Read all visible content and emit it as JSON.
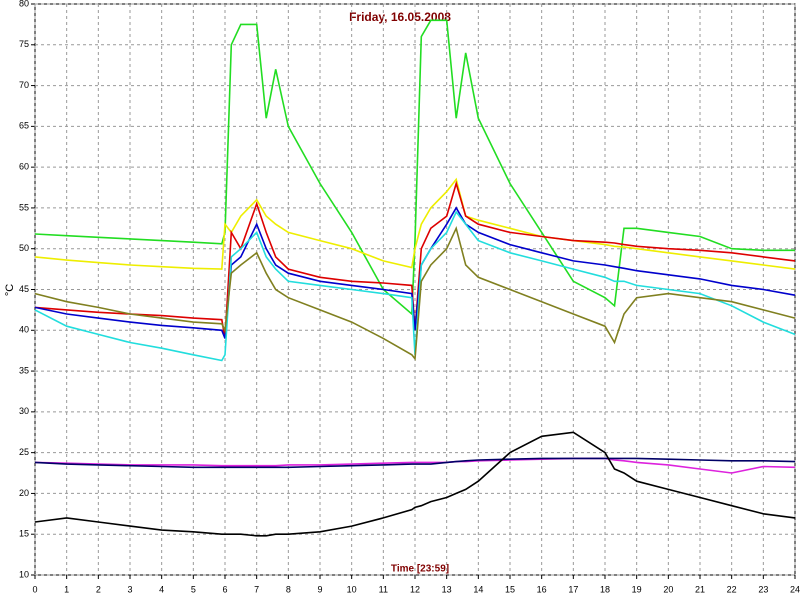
{
  "chart_data": {
    "type": "line",
    "title": "Friday, 16.05.2008",
    "x_label": "Time [23:59]",
    "y_label": "°C",
    "x": [
      0,
      1,
      2,
      3,
      4,
      5,
      5.9,
      6,
      6.2,
      6.5,
      7,
      7.3,
      7.6,
      8,
      9,
      10,
      11,
      11.9,
      12,
      12.2,
      12.5,
      13,
      13.3,
      13.6,
      14,
      15,
      16,
      17,
      18,
      18.3,
      18.6,
      19,
      20,
      21,
      22,
      23,
      24
    ],
    "xlim": [
      0,
      24
    ],
    "xticks": [
      0,
      1,
      2,
      3,
      4,
      5,
      6,
      7,
      8,
      9,
      10,
      11,
      12,
      13,
      14,
      15,
      16,
      17,
      18,
      19,
      20,
      21,
      22,
      23,
      24
    ],
    "ylim": [
      10,
      80
    ],
    "yticks": [
      10,
      15,
      20,
      25,
      30,
      35,
      40,
      45,
      50,
      55,
      60,
      65,
      70,
      75,
      80
    ],
    "grid": true,
    "series": [
      {
        "color": "#22dd22",
        "values": [
          51.8,
          51.6,
          51.4,
          51.2,
          51,
          50.8,
          50.6,
          52,
          75,
          77.5,
          77.5,
          66,
          72,
          65,
          58,
          52,
          45,
          42,
          51,
          76,
          78,
          78,
          66,
          74,
          66,
          58,
          52,
          46,
          44,
          43,
          52.5,
          52.5,
          52,
          51.5,
          50,
          49.8,
          49.8
        ]
      },
      {
        "color": "#eeee00",
        "values": [
          49,
          48.6,
          48.3,
          48,
          47.8,
          47.6,
          47.5,
          53,
          52,
          54,
          56,
          54,
          53,
          52,
          51,
          50,
          48.5,
          47.7,
          50,
          53,
          55,
          57,
          58.5,
          54,
          53.5,
          52.5,
          51.5,
          51,
          50.5,
          50.3,
          50.2,
          50,
          49.5,
          49,
          48.5,
          48,
          47.5
        ]
      },
      {
        "color": "#dd0000",
        "values": [
          42.8,
          42.5,
          42.2,
          42,
          41.8,
          41.5,
          41.3,
          39,
          52,
          50,
          55.5,
          52,
          49,
          47.5,
          46.5,
          46,
          45.8,
          45.5,
          40,
          50,
          52.5,
          54,
          58,
          54,
          53,
          52,
          51.5,
          51,
          50.8,
          50.7,
          50.5,
          50.3,
          50,
          49.8,
          49.5,
          49,
          48.5
        ]
      },
      {
        "color": "#0000cc",
        "values": [
          42.8,
          42,
          41.5,
          41,
          40.6,
          40.3,
          40,
          39,
          48,
          49,
          53,
          50,
          48,
          47,
          46,
          45.5,
          45,
          44.5,
          40,
          48,
          50,
          53,
          55,
          53,
          52,
          50.5,
          49.5,
          48.5,
          48,
          47.8,
          47.6,
          47.3,
          46.8,
          46.3,
          45.5,
          45,
          44.3
        ]
      },
      {
        "color": "#22dddd",
        "values": [
          42.5,
          40.5,
          39.5,
          38.5,
          37.8,
          37,
          36.3,
          37,
          49,
          50,
          52,
          49,
          47.5,
          46,
          45.5,
          45,
          44.5,
          44,
          37,
          48,
          50,
          52,
          54.5,
          53,
          51,
          49.5,
          48.5,
          47.5,
          46.5,
          46,
          46,
          45.5,
          45,
          44.5,
          43,
          41,
          39.5
        ]
      },
      {
        "color": "#808020",
        "values": [
          44.5,
          43.5,
          42.8,
          42,
          41.5,
          41,
          40.8,
          40,
          47,
          48,
          49.5,
          47,
          45,
          44,
          42.5,
          41,
          39,
          37,
          36.5,
          46,
          48,
          50,
          52.5,
          48,
          46.5,
          45,
          43.5,
          42,
          40.5,
          38.5,
          42,
          44,
          44.5,
          44,
          43.5,
          42.5,
          41.5
        ]
      },
      {
        "color": "#dd22dd",
        "values": [
          23.8,
          23.7,
          23.6,
          23.5,
          23.5,
          23.5,
          23.4,
          23.4,
          23.4,
          23.4,
          23.4,
          23.4,
          23.4,
          23.5,
          23.5,
          23.6,
          23.7,
          23.8,
          23.8,
          23.8,
          23.8,
          23.8,
          23.9,
          23.9,
          24,
          24.1,
          24.2,
          24.3,
          24.3,
          24.1,
          24,
          23.8,
          23.5,
          23,
          22.5,
          23.3,
          23.2
        ]
      },
      {
        "color": "#000066",
        "values": [
          23.8,
          23.6,
          23.5,
          23.4,
          23.3,
          23.2,
          23.2,
          23.2,
          23.2,
          23.2,
          23.2,
          23.2,
          23.2,
          23.2,
          23.3,
          23.4,
          23.5,
          23.6,
          23.6,
          23.6,
          23.6,
          23.8,
          23.9,
          24,
          24.1,
          24.2,
          24.3,
          24.3,
          24.3,
          24.3,
          24.3,
          24.3,
          24.2,
          24.1,
          24,
          24,
          23.9
        ]
      },
      {
        "color": "#000000",
        "values": [
          16.5,
          17,
          16.5,
          16,
          15.5,
          15.3,
          15,
          15,
          15,
          15,
          14.8,
          14.8,
          15,
          15,
          15.3,
          16,
          17,
          18,
          18.3,
          18.5,
          19,
          19.5,
          20,
          20.5,
          21.5,
          25,
          27,
          27.5,
          25,
          23,
          22.5,
          21.5,
          20.5,
          19.5,
          18.5,
          17.5,
          17
        ]
      }
    ]
  }
}
